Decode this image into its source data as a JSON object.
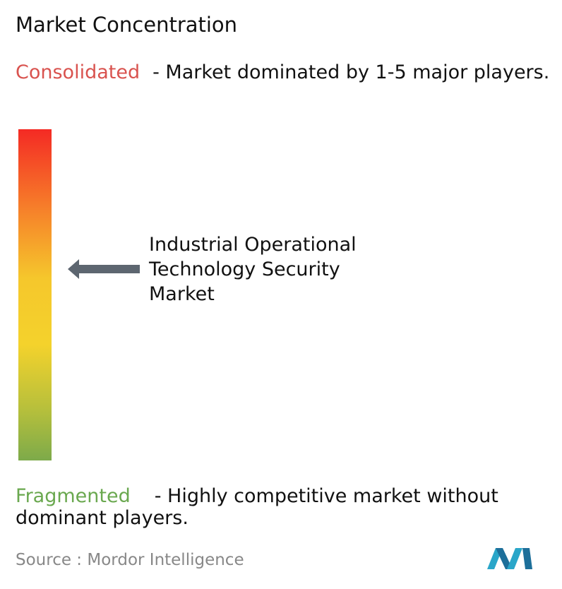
{
  "title": "Market Concentration",
  "consolidated": {
    "label": "Consolidated",
    "description": "- Market dominated by 1-5 major players."
  },
  "market": {
    "lines": [
      "Industrial Operational",
      "Technology Security",
      "Market"
    ]
  },
  "fragmented": {
    "label": "Fragmented",
    "description": "- Highly competitive market without dominant players."
  },
  "source": {
    "label": "Source :",
    "name": "Mordor Intelligence"
  }
}
